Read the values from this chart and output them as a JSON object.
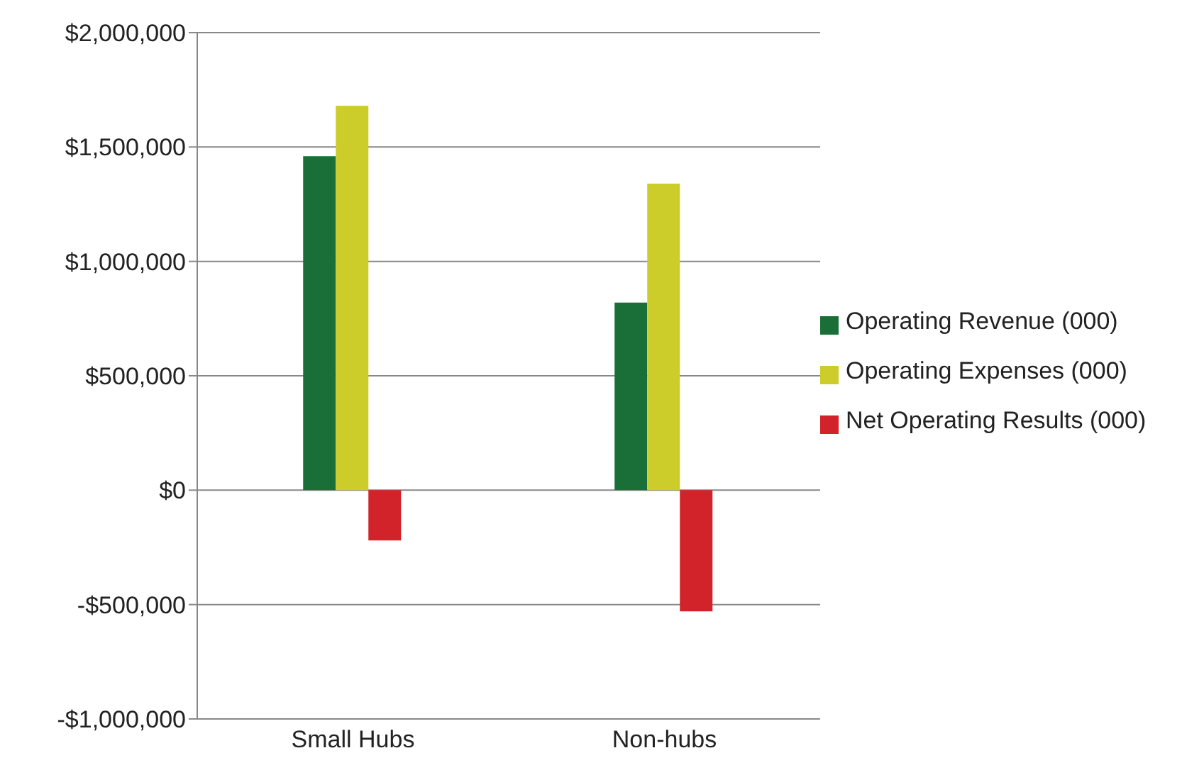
{
  "chart_data": {
    "type": "bar",
    "categories": [
      "Small Hubs",
      "Non-hubs"
    ],
    "series": [
      {
        "name": "Operating Revenue (000)",
        "color": "#1a6e38",
        "values": [
          1460000,
          820000
        ]
      },
      {
        "name": "Operating Expenses (000)",
        "color": "#cccc2a",
        "values": [
          1680000,
          1340000
        ]
      },
      {
        "name": "Net Operating Results (000)",
        "color": "#d2232a",
        "values": [
          -220000,
          -530000
        ]
      }
    ],
    "ylim": [
      -1000000,
      2000000
    ],
    "yticks": [
      {
        "value": -1000000,
        "label": "-$1,000,000"
      },
      {
        "value": -500000,
        "label": "-$500,000"
      },
      {
        "value": 0,
        "label": "$0"
      },
      {
        "value": 500000,
        "label": "$500,000"
      },
      {
        "value": 1000000,
        "label": "$1,000,000"
      },
      {
        "value": 1500000,
        "label": "$1,500,000"
      },
      {
        "value": 2000000,
        "label": "$2,000,000"
      }
    ],
    "grid": "y",
    "legend": "right"
  }
}
